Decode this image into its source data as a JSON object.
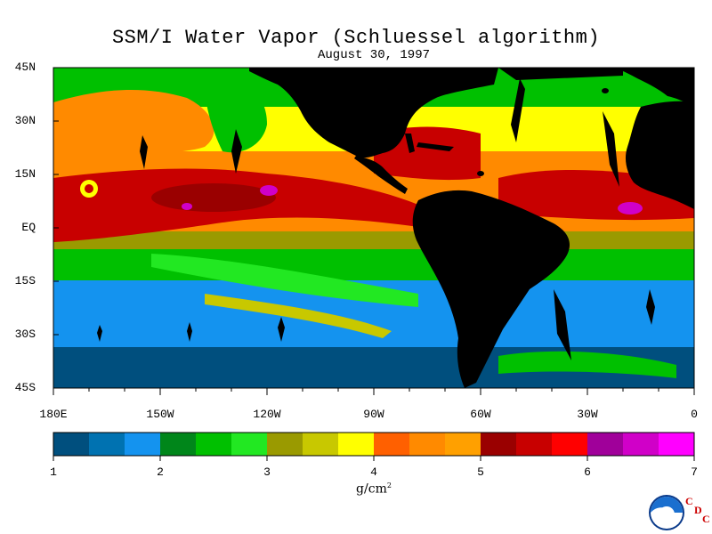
{
  "title": "SSM/I Water Vapor (Schluessel algorithm)",
  "subtitle": "August 30, 1997",
  "lat_labels": [
    "45N",
    "30N",
    "15N",
    "EQ",
    "15S",
    "30S",
    "45S"
  ],
  "lon_labels": [
    "180E",
    "150W",
    "120W",
    "90W",
    "60W",
    "30W",
    "0"
  ],
  "colorbar": {
    "tick_labels": [
      "1",
      "2",
      "3",
      "4",
      "5",
      "6",
      "7"
    ],
    "units_text": "g/cm",
    "units_exponent": "2",
    "colors": [
      "#004f7e",
      "#0072b1",
      "#1493ef",
      "#00861a",
      "#00c000",
      "#22e822",
      "#9a9a00",
      "#c8c800",
      "#ffff00",
      "#ff6000",
      "#ff8a00",
      "#ffa000",
      "#9a0000",
      "#c80000",
      "#ff0000",
      "#a0009a",
      "#d000c8",
      "#ff00ff"
    ]
  },
  "map_colors": {
    "land": "#000000",
    "ocean_low": "#004f7e",
    "ocean_mid": "#1493ef",
    "green": "#00c000",
    "olive": "#9a9a00",
    "yellow": "#ffff00",
    "orange": "#ff8a00",
    "red": "#c80000",
    "magenta": "#d000c8"
  },
  "logo": {
    "noaa": "NOAA",
    "cdc_c": "C",
    "cdc_d": "D",
    "cdc_c2": "C"
  }
}
